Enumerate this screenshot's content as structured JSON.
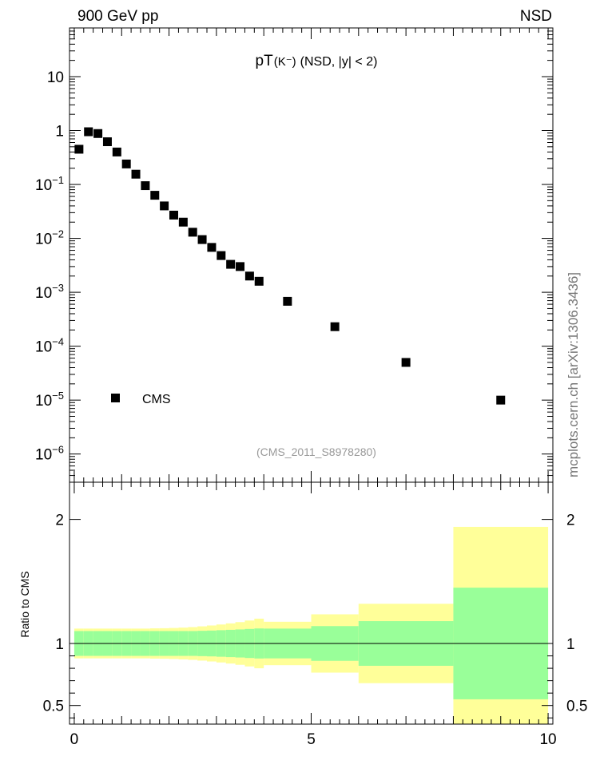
{
  "header": {
    "left": "900 GeV pp",
    "right": "NSD"
  },
  "side_label": "mcplots.cern.ch [arXiv:1306.3436]",
  "chart_data": [
    {
      "type": "scatter",
      "title": "pT(K⁻) (NSD, |y| < 2)",
      "title_main": "pT",
      "title_particle": "(K⁻)",
      "title_rest": "(NSD, |y| < 2)",
      "watermark": "(CMS_2011_S8978280)",
      "y_scale": "log",
      "xlim": [
        -0.1,
        10.1
      ],
      "ylim": [
        3e-07,
        80
      ],
      "y_ticks": [
        {
          "value": 10,
          "label": "10"
        },
        {
          "value": 1,
          "label": "1"
        },
        {
          "value": 0.1,
          "base": "10",
          "exp": "−1"
        },
        {
          "value": 0.01,
          "base": "10",
          "exp": "−2"
        },
        {
          "value": 0.001,
          "base": "10",
          "exp": "−3"
        },
        {
          "value": 0.0001,
          "base": "10",
          "exp": "−4"
        },
        {
          "value": 1e-05,
          "base": "10",
          "exp": "−5"
        },
        {
          "value": 1e-06,
          "base": "10",
          "exp": "−6"
        }
      ],
      "legend": {
        "position": "bottom-left",
        "entries": [
          "CMS"
        ]
      },
      "series": [
        {
          "name": "CMS",
          "color": "#000000",
          "x": [
            0.1,
            0.3,
            0.5,
            0.7,
            0.9,
            1.1,
            1.3,
            1.5,
            1.7,
            1.9,
            2.1,
            2.3,
            2.5,
            2.7,
            2.9,
            3.1,
            3.3,
            3.5,
            3.7,
            3.9,
            4.5,
            5.5,
            7.0,
            9.0
          ],
          "y": [
            0.45,
            0.95,
            0.88,
            0.62,
            0.4,
            0.24,
            0.155,
            0.095,
            0.063,
            0.04,
            0.027,
            0.02,
            0.013,
            0.0095,
            0.0068,
            0.0048,
            0.0033,
            0.003,
            0.002,
            0.0016,
            0.00068,
            0.00023,
            5e-05,
            1e-05
          ]
        }
      ]
    },
    {
      "type": "area",
      "ylabel": "Ratio to CMS",
      "xlim": [
        -0.1,
        10.1
      ],
      "ylim": [
        0.35,
        2.3
      ],
      "x_ticks": [
        0,
        5,
        10
      ],
      "y_ticks": [
        0.5,
        1,
        2
      ],
      "reference_line": 1,
      "bands": {
        "colors": {
          "stat": "#99ff99",
          "total": "#ffff99"
        },
        "bins": [
          [
            0.0,
            0.2,
            0.9,
            1.1,
            0.88,
            1.12
          ],
          [
            0.2,
            0.4,
            0.9,
            1.1,
            0.88,
            1.12
          ],
          [
            0.4,
            0.6,
            0.9,
            1.1,
            0.88,
            1.12
          ],
          [
            0.6,
            0.8,
            0.9,
            1.1,
            0.88,
            1.12
          ],
          [
            0.8,
            1.0,
            0.9,
            1.1,
            0.88,
            1.12
          ],
          [
            1.0,
            1.2,
            0.9,
            1.1,
            0.88,
            1.12
          ],
          [
            1.2,
            1.4,
            0.9,
            1.1,
            0.88,
            1.12
          ],
          [
            1.4,
            1.6,
            0.9,
            1.1,
            0.88,
            1.12
          ],
          [
            1.6,
            1.8,
            0.9,
            1.1,
            0.878,
            1.122
          ],
          [
            1.8,
            2.0,
            0.9,
            1.1,
            0.877,
            1.123
          ],
          [
            2.0,
            2.2,
            0.9,
            1.1,
            0.875,
            1.125
          ],
          [
            2.2,
            2.4,
            0.9,
            1.1,
            0.872,
            1.128
          ],
          [
            2.4,
            2.6,
            0.9,
            1.1,
            0.868,
            1.132
          ],
          [
            2.6,
            2.8,
            0.898,
            1.102,
            0.862,
            1.138
          ],
          [
            2.8,
            3.0,
            0.896,
            1.104,
            0.855,
            1.145
          ],
          [
            3.0,
            3.2,
            0.893,
            1.107,
            0.847,
            1.153
          ],
          [
            3.2,
            3.4,
            0.89,
            1.11,
            0.838,
            1.162
          ],
          [
            3.4,
            3.6,
            0.887,
            1.113,
            0.828,
            1.172
          ],
          [
            3.6,
            3.8,
            0.883,
            1.117,
            0.815,
            1.185
          ],
          [
            3.8,
            4.0,
            0.879,
            1.121,
            0.8,
            1.2
          ],
          [
            4.0,
            5.0,
            0.88,
            1.12,
            0.825,
            1.175
          ],
          [
            5.0,
            6.0,
            0.86,
            1.14,
            0.765,
            1.235
          ],
          [
            6.0,
            8.0,
            0.82,
            1.18,
            0.68,
            1.32
          ],
          [
            8.0,
            10.0,
            0.55,
            1.45,
            0.06,
            1.94
          ]
        ]
      }
    }
  ]
}
